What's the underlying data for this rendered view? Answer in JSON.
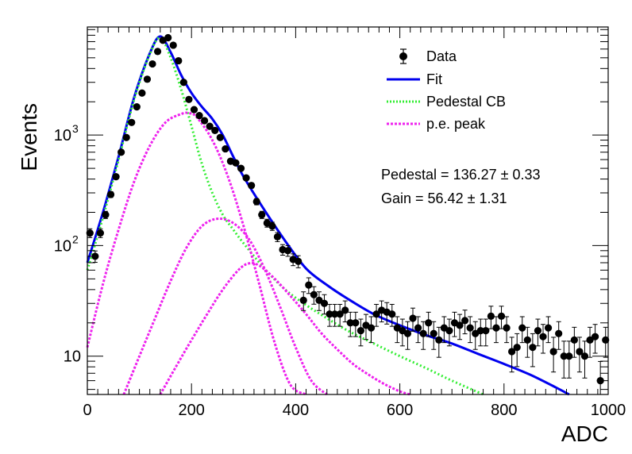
{
  "chart_data": {
    "type": "scatter",
    "xlabel": "ADC",
    "ylabel": "Events",
    "xlim": [
      0,
      1000
    ],
    "ylim": [
      4.5,
      9500
    ],
    "yscale": "log",
    "x_ticks": [
      0,
      200,
      400,
      600,
      800,
      1000
    ],
    "y_ticks": [
      10,
      100,
      1000
    ],
    "y_tick_labels": {
      "base": "10",
      "exponents": [
        "",
        "2",
        "3"
      ]
    },
    "grid": false,
    "legend_position": "top-right",
    "legend": [
      "Data",
      "Fit",
      "Pedestal CB",
      "p.e. peak"
    ],
    "annotations": [
      "Pedestal = 136.27 ± 0.33",
      "Gain = 56.42 ± 1.31"
    ],
    "colors": {
      "data": "#000000",
      "fit": "#0000ee",
      "pedestal": "#33ee33",
      "pe_peak": "#ee22ee"
    },
    "series": [
      {
        "name": "Data",
        "style": "points-with-errorbars",
        "x": [
          0,
          10,
          20,
          30,
          40,
          50,
          60,
          70,
          80,
          90,
          100,
          110,
          120,
          130,
          140,
          150,
          160,
          170,
          180,
          190,
          200,
          210,
          220,
          230,
          240,
          250,
          260,
          270,
          280,
          290,
          300,
          310,
          320,
          330,
          340,
          350,
          360,
          370,
          380,
          390,
          400,
          410,
          420,
          430,
          440,
          450,
          460,
          470,
          480,
          490,
          500,
          510,
          520,
          530,
          540,
          550,
          560,
          570,
          580,
          590,
          600,
          610,
          620,
          630,
          640,
          650,
          660,
          670,
          680,
          690,
          700,
          710,
          720,
          730,
          740,
          750,
          760,
          770,
          780,
          790,
          800,
          810,
          820,
          830,
          840,
          850,
          860,
          870,
          880,
          890,
          900,
          910,
          920,
          930,
          940,
          950,
          960,
          970,
          980,
          990
        ],
        "y": [
          130,
          80,
          130,
          190,
          290,
          420,
          700,
          950,
          1300,
          1800,
          2400,
          3200,
          4400,
          5700,
          7200,
          7600,
          6500,
          4700,
          3000,
          2100,
          1700,
          1500,
          1350,
          1200,
          1100,
          950,
          750,
          580,
          560,
          500,
          410,
          350,
          250,
          190,
          160,
          150,
          120,
          92,
          90,
          75,
          72,
          32,
          44,
          36,
          32,
          30,
          24,
          24,
          24,
          26,
          20,
          20,
          17,
          19,
          18,
          24,
          26,
          25,
          24,
          18,
          17,
          16,
          22,
          18,
          16,
          20,
          16,
          14,
          18,
          17,
          20,
          19,
          21,
          18,
          16,
          17,
          17,
          23,
          18,
          23,
          18,
          11,
          12,
          18,
          14,
          12,
          17,
          15,
          18,
          11,
          16,
          10,
          10,
          14,
          11,
          10,
          14,
          15,
          6,
          14
        ]
      },
      {
        "name": "Fit",
        "style": "solid",
        "x": [
          0,
          30,
          60,
          90,
          120,
          140,
          160,
          180,
          200,
          220,
          240,
          260,
          280,
          300,
          340,
          380,
          420,
          460,
          500,
          550,
          600,
          650,
          700,
          750,
          800,
          850,
          900,
          925
        ],
        "y": [
          70,
          200,
          640,
          2200,
          5500,
          7800,
          5600,
          3500,
          2400,
          1800,
          1400,
          1000,
          640,
          420,
          210,
          110,
          62,
          44,
          33,
          24,
          19,
          15.5,
          13,
          10.5,
          8.5,
          6.8,
          5.2,
          4.5
        ]
      },
      {
        "name": "Pedestal CB",
        "style": "dotted",
        "x": [
          0,
          30,
          60,
          90,
          120,
          140,
          160,
          180,
          200,
          220,
          240,
          260,
          280,
          300,
          340,
          380,
          420,
          460,
          500,
          550,
          600,
          650,
          700,
          760
        ],
        "y": [
          60,
          180,
          600,
          2100,
          5400,
          7600,
          5000,
          2600,
          1200,
          550,
          300,
          190,
          140,
          105,
          62,
          40,
          29,
          22,
          17,
          13,
          10,
          7.8,
          6,
          4.5
        ]
      },
      {
        "name": "p.e. peak",
        "style": "dotted",
        "x": [
          0,
          30,
          60,
          90,
          120,
          150,
          180,
          195,
          210,
          240,
          270,
          300,
          330,
          360,
          390,
          420
        ],
        "y": [
          12,
          45,
          140,
          380,
          800,
          1300,
          1550,
          1580,
          1450,
          900,
          420,
          150,
          45,
          13,
          5.5,
          4.5
        ]
      },
      {
        "name": "p.e. peak",
        "style": "dotted",
        "x": [
          70,
          100,
          130,
          160,
          190,
          220,
          250,
          280,
          310,
          340,
          370,
          400,
          430,
          460
        ],
        "y": [
          4.5,
          10,
          22,
          48,
          95,
          150,
          175,
          160,
          115,
          62,
          28,
          12,
          6,
          4.5
        ]
      },
      {
        "name": "p.e. peak",
        "style": "dotted",
        "x": [
          140,
          170,
          200,
          230,
          260,
          290,
          310,
          330,
          360,
          390,
          420,
          450,
          480,
          510,
          540,
          570,
          600,
          620
        ],
        "y": [
          4.5,
          8,
          14,
          24,
          40,
          60,
          69,
          66,
          50,
          35,
          24,
          16,
          11.5,
          8.5,
          6.8,
          5.6,
          4.8,
          4.5
        ]
      }
    ]
  }
}
